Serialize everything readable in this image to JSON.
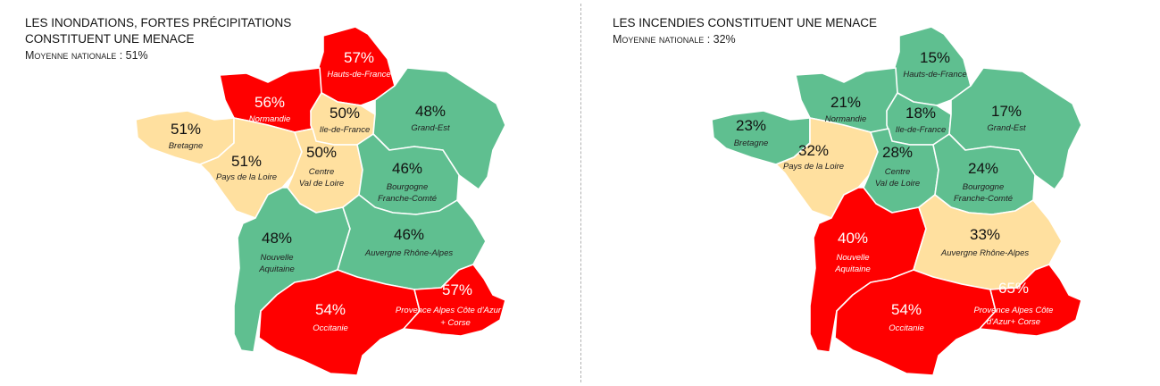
{
  "colors": {
    "high": "#ff0000",
    "medium": "#ffe09f",
    "low": "#5fbf90"
  },
  "maps": [
    {
      "title_line1": "LES INONDATIONS, FORTES PRÉCIPITATIONS",
      "title_line2": "CONSTITUENT UNE MENACE",
      "subtitle": "Moyenne nationale : 51%",
      "regions": {
        "hdf": {
          "pct": "57%",
          "name1": "Hauts-de-France",
          "name2": "",
          "level": "high"
        },
        "nor": {
          "pct": "56%",
          "name1": "Normandie",
          "name2": "",
          "level": "high"
        },
        "idf": {
          "pct": "50%",
          "name1": "Ile-de-France",
          "name2": "",
          "level": "medium"
        },
        "ge": {
          "pct": "48%",
          "name1": "Grand-Est",
          "name2": "",
          "level": "low"
        },
        "bre": {
          "pct": "51%",
          "name1": "Bretagne",
          "name2": "",
          "level": "medium"
        },
        "pdl": {
          "pct": "51%",
          "name1": "Pays de la Loire",
          "name2": "",
          "level": "medium"
        },
        "cvl": {
          "pct": "50%",
          "name1": "Centre",
          "name2": "Val de Loire",
          "level": "medium"
        },
        "bfc": {
          "pct": "46%",
          "name1": "Bourgogne",
          "name2": "Franche-Comté",
          "level": "low"
        },
        "na": {
          "pct": "48%",
          "name1": "Nouvelle",
          "name2": "Aquitaine",
          "level": "low"
        },
        "ara": {
          "pct": "46%",
          "name1": "Auvergne Rhône-Alpes",
          "name2": "",
          "level": "low"
        },
        "occ": {
          "pct": "54%",
          "name1": "Occitanie",
          "name2": "",
          "level": "high"
        },
        "paca": {
          "pct": "57%",
          "name1": "Provence Alpes Côte d'Azur",
          "name2": "+ Corse",
          "level": "high"
        }
      }
    },
    {
      "title_line1": "LES INCENDIES CONSTITUENT UNE MENACE",
      "title_line2": "",
      "subtitle": "Moyenne nationale : 32%",
      "regions": {
        "hdf": {
          "pct": "15%",
          "name1": "Hauts-de-France",
          "name2": "",
          "level": "low"
        },
        "nor": {
          "pct": "21%",
          "name1": "Normandie",
          "name2": "",
          "level": "low"
        },
        "idf": {
          "pct": "18%",
          "name1": "Ile-de-France",
          "name2": "",
          "level": "low"
        },
        "ge": {
          "pct": "17%",
          "name1": "Grand-Est",
          "name2": "",
          "level": "low"
        },
        "bre": {
          "pct": "23%",
          "name1": "Bretagne",
          "name2": "",
          "level": "low"
        },
        "pdl": {
          "pct": "32%",
          "name1": "Pays de la Loire",
          "name2": "",
          "level": "medium"
        },
        "cvl": {
          "pct": "28%",
          "name1": "Centre",
          "name2": "Val de Loire",
          "level": "low"
        },
        "bfc": {
          "pct": "24%",
          "name1": "Bourgogne",
          "name2": "Franche-Comté",
          "level": "low"
        },
        "na": {
          "pct": "40%",
          "name1": "Nouvelle",
          "name2": "Aquitaine",
          "level": "high"
        },
        "ara": {
          "pct": "33%",
          "name1": "Auvergne Rhône-Alpes",
          "name2": "",
          "level": "medium"
        },
        "occ": {
          "pct": "54%",
          "name1": "Occitanie",
          "name2": "",
          "level": "high"
        },
        "paca": {
          "pct": "65%",
          "name1": "Provence Alpes Côte",
          "name2": "d'Azur+ Corse",
          "level": "high"
        }
      }
    }
  ]
}
